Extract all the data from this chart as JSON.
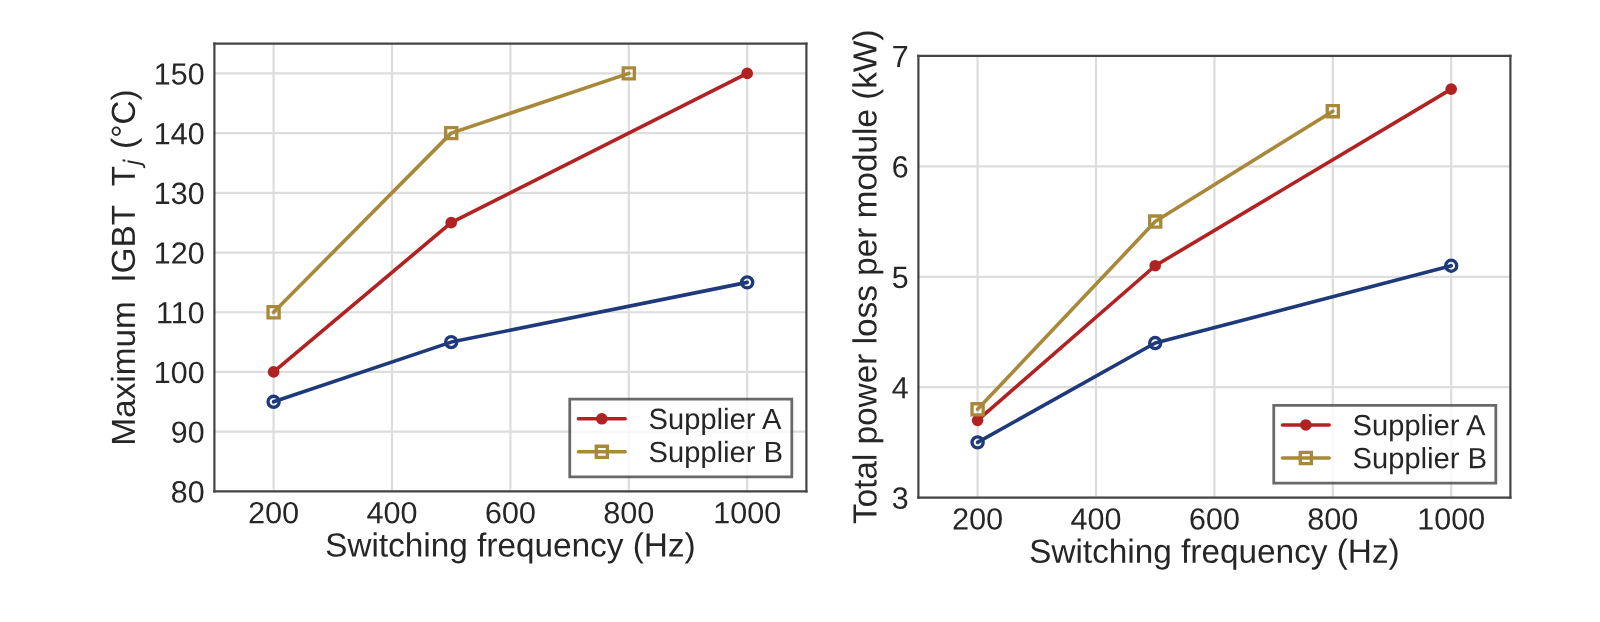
{
  "chart_data": [
    {
      "type": "line",
      "xlabel": "Switching frequency (Hz)",
      "ylabel": "Maximum  IGBT  T$_{j}$ (°C)",
      "x": [
        200,
        500,
        1000
      ],
      "series": [
        {
          "color": "#1f3a7a",
          "marker": "circle",
          "values": [
            95,
            105,
            115
          ]
        },
        {
          "name": "Supplier A",
          "color": "#b22222",
          "marker": "circle",
          "values": [
            100,
            125,
            150
          ]
        },
        {
          "name": "Supplier B",
          "color": "#a8893a",
          "marker": "square",
          "x": [
            200,
            500,
            800
          ],
          "values": [
            110,
            140,
            150
          ]
        }
      ],
      "xlim": [
        100,
        1100
      ],
      "xticks": [
        200,
        400,
        600,
        800,
        1000
      ],
      "ylim": [
        80,
        155
      ],
      "yticks": [
        80,
        90,
        100,
        110,
        120,
        130,
        140,
        150
      ],
      "grid": true,
      "legend": "bottom right"
    },
    {
      "type": "line",
      "xlabel": "Switching frequency (Hz)",
      "ylabel": "Total power loss per module (kW)",
      "x": [
        200,
        500,
        1000
      ],
      "series": [
        {
          "color": "#1f3a7a",
          "marker": "circle",
          "values": [
            3.5,
            4.4,
            5.1
          ]
        },
        {
          "name": "Supplier A",
          "color": "#b22222",
          "marker": "circle",
          "values": [
            3.7,
            5.1,
            6.7
          ]
        },
        {
          "name": "Supplier B",
          "color": "#a8893a",
          "marker": "square",
          "x": [
            200,
            500,
            800
          ],
          "values": [
            3.8,
            5.5,
            6.5
          ]
        }
      ],
      "xlim": [
        100,
        1100
      ],
      "xticks": [
        200,
        400,
        600,
        800,
        1000
      ],
      "ylim": [
        3,
        7
      ],
      "yticks": [
        3,
        4,
        5,
        6,
        7
      ],
      "grid": true,
      "legend": "bottom right"
    }
  ]
}
